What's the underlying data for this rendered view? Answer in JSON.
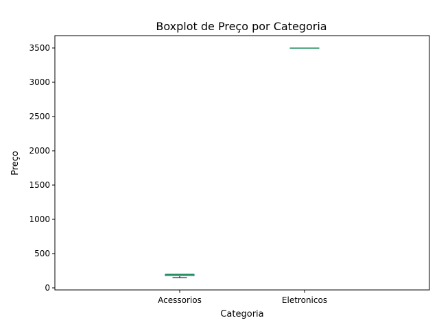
{
  "chart_data": {
    "type": "boxplot",
    "title": "Boxplot de Preço por Categoria",
    "xlabel": "Categoria",
    "ylabel": "Preço",
    "ylim": [
      -30,
      3680
    ],
    "yticks": [
      0,
      500,
      1000,
      1500,
      2000,
      2500,
      3000,
      3500
    ],
    "categories": [
      "Acessorios",
      "Eletronicos"
    ],
    "boxes": [
      {
        "category": "Acessorios",
        "whislo": 150,
        "q1": 175,
        "median": 190,
        "q3": 200,
        "whishi": 200
      },
      {
        "category": "Eletronicos",
        "whislo": 3500,
        "q1": 3500,
        "median": 3500,
        "q3": 3500,
        "whishi": 3500
      }
    ],
    "grid": false,
    "colors": {
      "box": "#1f77b4",
      "median": "#2ca02c",
      "whisker": "#000000",
      "axes": "#000000"
    }
  }
}
